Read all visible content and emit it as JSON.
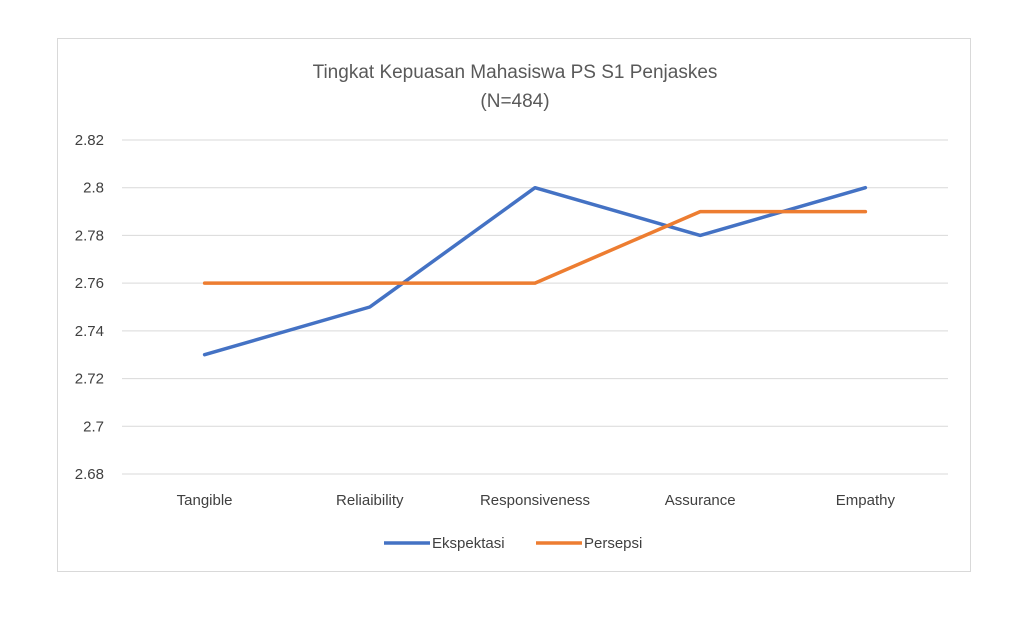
{
  "chart_data": {
    "type": "line",
    "title": "Tingkat Kepuasan Mahasiswa PS S1 Penjaskes",
    "subtitle": "(N=484)",
    "categories": [
      "Tangible",
      "Reliaibility",
      "Responsiveness",
      "Assurance",
      "Empathy"
    ],
    "series": [
      {
        "name": "Ekspektasi",
        "color": "#4472C4",
        "values": [
          2.73,
          2.75,
          2.8,
          2.78,
          2.8
        ]
      },
      {
        "name": "Persepsi",
        "color": "#ED7D31",
        "values": [
          2.76,
          2.76,
          2.76,
          2.79,
          2.79
        ]
      }
    ],
    "ylim": [
      2.68,
      2.82
    ],
    "yticks": [
      "2.68",
      "2.7",
      "2.72",
      "2.74",
      "2.76",
      "2.78",
      "2.8",
      "2.82"
    ],
    "grid": true,
    "legend": "bottom"
  }
}
